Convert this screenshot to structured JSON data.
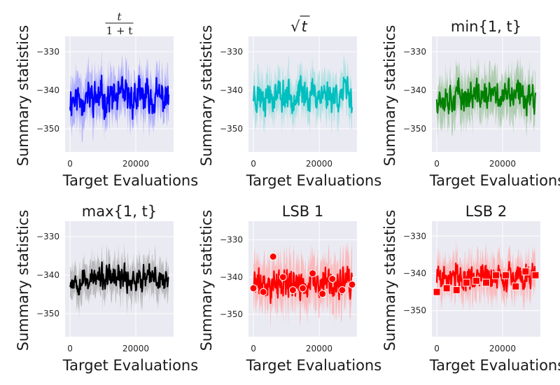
{
  "chart_data": [
    {
      "type": "line",
      "title": "t / (1+t)",
      "title_num": "t",
      "title_den": "1 + t",
      "xlabel": "Target Evaluations",
      "ylabel": "Summary statistics",
      "xticks": [
        0,
        20000
      ],
      "yticks": [
        -330,
        -340,
        -350
      ],
      "xlim": [
        -1500,
        31500
      ],
      "ylim": [
        -356,
        -326
      ],
      "series": [
        {
          "name": "mean",
          "mean": -342,
          "band": 5,
          "noise": 3.6,
          "color": "#0000ff",
          "band_color": "#9999ff",
          "seed": 11
        }
      ]
    },
    {
      "type": "line",
      "title": "√t",
      "title_sym": "√",
      "title_var": "t",
      "xlabel": "Target Evaluations",
      "ylabel": "Summary statistics",
      "xticks": [
        0,
        20000
      ],
      "yticks": [
        -330,
        -340,
        -350
      ],
      "xlim": [
        -1500,
        31500
      ],
      "ylim": [
        -356,
        -326
      ],
      "series": [
        {
          "name": "mean",
          "mean": -341,
          "band": 4.5,
          "noise": 3.4,
          "color": "#00bfbf",
          "band_color": "#99dede",
          "seed": 23
        }
      ]
    },
    {
      "type": "line",
      "title": "min{1, t}",
      "xlabel": "Target Evaluations",
      "ylabel": "Summary statistics",
      "xticks": [
        0,
        20000
      ],
      "yticks": [
        -330,
        -340,
        -350
      ],
      "xlim": [
        -1500,
        31500
      ],
      "ylim": [
        -356,
        -326
      ],
      "series": [
        {
          "name": "mean",
          "mean": -341.5,
          "band": 5,
          "noise": 3.2,
          "color": "#008000",
          "band_color": "#99c299",
          "seed": 37
        }
      ]
    },
    {
      "type": "line",
      "title": "max{1, t}",
      "xlabel": "Target Evaluations",
      "ylabel": "Summary statistics",
      "xticks": [
        0,
        20000
      ],
      "yticks": [
        -330,
        -340,
        -350
      ],
      "xlim": [
        -1500,
        31500
      ],
      "ylim": [
        -356,
        -326
      ],
      "series": [
        {
          "name": "mean",
          "mean": -341,
          "band": 4,
          "noise": 2.6,
          "color": "#000000",
          "band_color": "#aaaaaa",
          "seed": 53
        }
      ]
    },
    {
      "type": "line",
      "title": "LSB 1",
      "xlabel": "Target Evaluations",
      "ylabel": "Summary statistics",
      "xticks": [
        0,
        20000
      ],
      "yticks": [
        -330,
        -340,
        -350
      ],
      "xlim": [
        -1500,
        31500
      ],
      "ylim": [
        -356,
        -325
      ],
      "series": [
        {
          "name": "mean",
          "mean": -342,
          "band": 5.5,
          "noise": 3.4,
          "color": "#ff0000",
          "band_color": "#ffaaaa",
          "seed": 71
        }
      ],
      "markers": {
        "shape": "circle",
        "x": [
          0,
          3000,
          6000,
          9000,
          12000,
          15000,
          18000,
          21000,
          24000,
          27000,
          30000
        ],
        "y": [
          -343,
          -344,
          -334.5,
          -340,
          -343.5,
          -343,
          -339,
          -344.5,
          -340.5,
          -343.5,
          -342
        ]
      }
    },
    {
      "type": "line",
      "title": "LSB 2",
      "xlabel": "Target Evaluations",
      "ylabel": "Summary statistics",
      "xticks": [
        0,
        20000
      ],
      "yticks": [
        -330,
        -340,
        -350
      ],
      "xlim": [
        -1500,
        31500
      ],
      "ylim": [
        -357,
        -326
      ],
      "series": [
        {
          "name": "mean",
          "mean": -341,
          "band": 4.5,
          "noise": 3,
          "color": "#ff0000",
          "band_color": "#ffaaaa",
          "seed": 89
        }
      ],
      "markers": {
        "shape": "square",
        "x": [
          0,
          3000,
          6000,
          9000,
          12000,
          15000,
          18000,
          21000,
          24000,
          27000,
          30000
        ],
        "y": [
          -345,
          -344,
          -344.5,
          -342.5,
          -342,
          -342.5,
          -340.5,
          -340.5,
          -343.5,
          -339.5,
          -340.5
        ]
      }
    }
  ]
}
